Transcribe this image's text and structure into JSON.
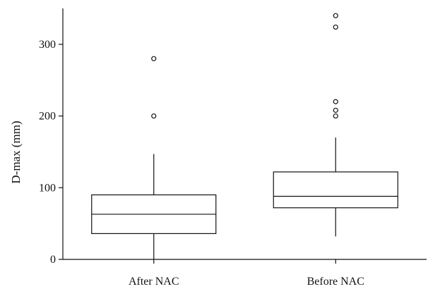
{
  "chart_data": {
    "type": "boxplot",
    "title": "",
    "xlabel": "",
    "ylabel": "D-max (mm)",
    "ylim": [
      0,
      350
    ],
    "yticks": [
      0,
      100,
      200,
      300
    ],
    "grid": false,
    "legend": "none",
    "categories": [
      "After NAC",
      "Before NAC"
    ],
    "boxes": [
      {
        "label": "After NAC",
        "whisker_low": 0,
        "q1": 36,
        "median": 63,
        "q3": 90,
        "whisker_high": 147,
        "outliers": [
          200,
          280
        ]
      },
      {
        "label": "Before NAC",
        "whisker_low": 32,
        "q1": 72,
        "median": 88,
        "q3": 122,
        "whisker_high": 170,
        "outliers": [
          200,
          208,
          220,
          324,
          340
        ]
      }
    ],
    "colors": {
      "stroke": "#111111",
      "fill": "#ffffff"
    }
  }
}
